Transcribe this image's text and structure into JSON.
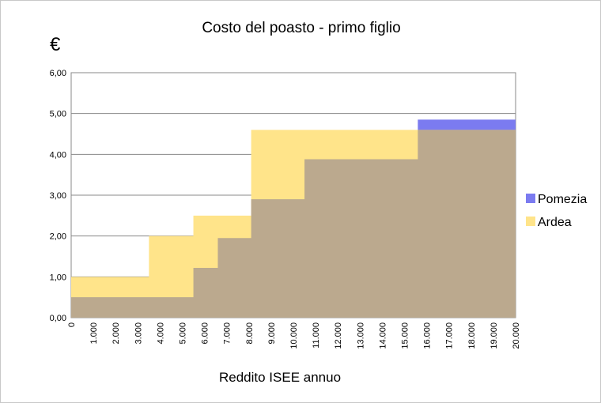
{
  "chart_data": {
    "type": "area",
    "title": "Costo del poasto - primo figlio",
    "ylabel": "€",
    "xlabel": "Reddito ISEE annuo",
    "ylim": [
      0,
      6
    ],
    "xlim": [
      0,
      20000
    ],
    "y_ticks": [
      "0,00",
      "1,00",
      "2,00",
      "3,00",
      "4,00",
      "5,00",
      "6,00"
    ],
    "x_ticks": [
      "0",
      "1.000",
      "2.000",
      "3.000",
      "4.000",
      "5.000",
      "6.000",
      "7.000",
      "8.000",
      "9.000",
      "10.000",
      "11.000",
      "12.000",
      "13.000",
      "14.000",
      "15.000",
      "16.000",
      "17.000",
      "18.000",
      "19.000",
      "20.000"
    ],
    "grid": true,
    "legend_position": "right",
    "series": [
      {
        "name": "Pomezia",
        "color": "#7b7bf0",
        "x": [
          0,
          5500,
          6600,
          8100,
          10500,
          15600,
          20000
        ],
        "values": [
          0.5,
          1.22,
          1.95,
          2.9,
          3.88,
          4.85,
          4.85
        ]
      },
      {
        "name": "Ardea",
        "color": "#ffe48a",
        "x": [
          0,
          3500,
          5500,
          8100,
          15600,
          20000
        ],
        "values": [
          1.0,
          2.0,
          2.5,
          4.6,
          4.6,
          4.6
        ]
      }
    ],
    "overlap_color": "#bba98e"
  }
}
